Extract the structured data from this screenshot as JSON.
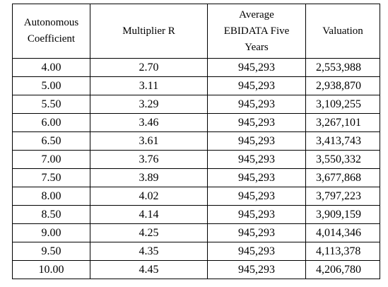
{
  "table": {
    "header": [
      [
        "Autonomous",
        "Coefficient"
      ],
      [
        "Multiplier R"
      ],
      [
        "Average",
        "EBIDATA Five",
        "Years"
      ],
      [
        "Valuation"
      ]
    ],
    "rows": [
      [
        "4.00",
        "2.70",
        "945,293",
        "2,553,988"
      ],
      [
        "5.00",
        "3.11",
        "945,293",
        "2,938,870"
      ],
      [
        "5.50",
        "3.29",
        "945,293",
        "3,109,255"
      ],
      [
        "6.00",
        "3.46",
        "945,293",
        "3,267,101"
      ],
      [
        "6.50",
        "3.61",
        "945,293",
        "3,413,743"
      ],
      [
        "7.00",
        "3.76",
        "945,293",
        "3,550,332"
      ],
      [
        "7.50",
        "3.89",
        "945,293",
        "3,677,868"
      ],
      [
        "8.00",
        "4.02",
        "945,293",
        "3,797,223"
      ],
      [
        "8.50",
        "4.14",
        "945,293",
        "3,909,159"
      ],
      [
        "9.00",
        "4.25",
        "945,293",
        "4,014,346"
      ],
      [
        "9.50",
        "4.35",
        "945,293",
        "4,113,378"
      ],
      [
        "10.00",
        "4.45",
        "945,293",
        "4,206,780"
      ]
    ]
  }
}
